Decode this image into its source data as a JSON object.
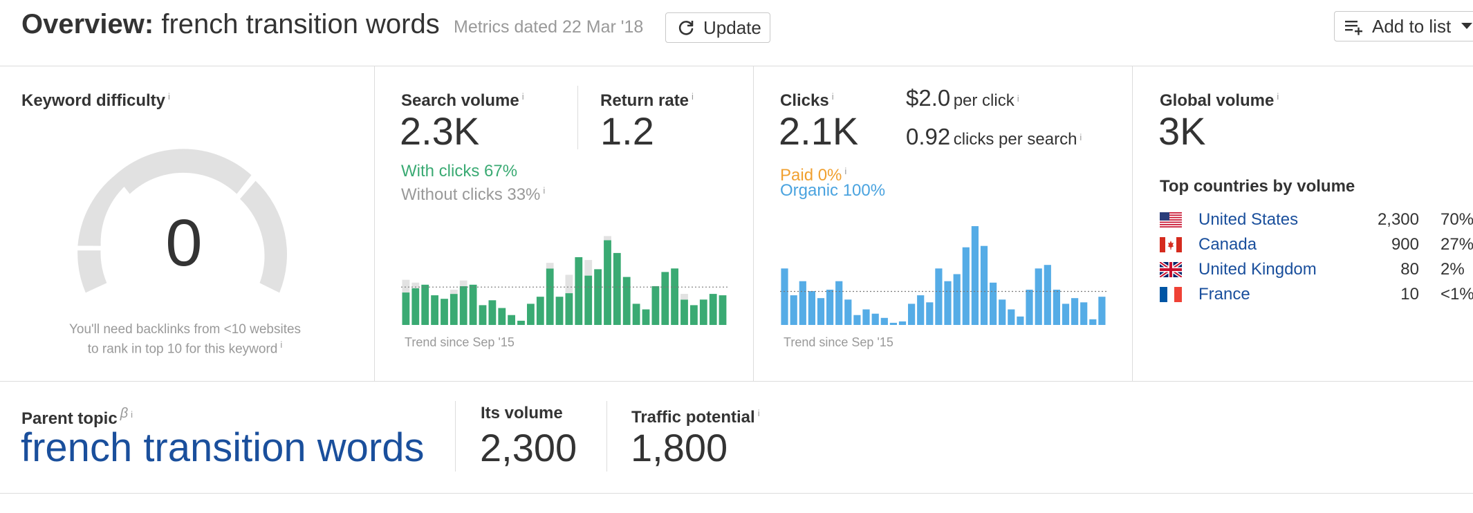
{
  "header": {
    "title_prefix": "Overview:",
    "title_keyword": "french transition words",
    "metrics_dated": "Metrics dated 22 Mar '18",
    "update_label": "Update",
    "add_to_list_label": "Add to list"
  },
  "kd": {
    "label": "Keyword difficulty",
    "value": "0",
    "note_line1": "You'll need backlinks from <10 websites",
    "note_line2": "to rank in top 10 for this keyword",
    "info": "i"
  },
  "search_volume": {
    "label": "Search volume",
    "value": "2.3K",
    "return_rate_label": "Return rate",
    "return_rate_value": "1.2",
    "with_clicks": "With clicks 67%",
    "without_clicks": "Without clicks 33%",
    "trend_label": "Trend since Sep '15",
    "info": "i"
  },
  "clicks": {
    "label": "Clicks",
    "value": "2.1K",
    "cpc_value": "$2.0",
    "cpc_label": "per click",
    "cps_value": "0.92",
    "cps_label": "clicks per search",
    "paid": "Paid 0%",
    "organic": "Organic 100%",
    "trend_label": "Trend since Sep '15",
    "info": "i"
  },
  "global": {
    "label": "Global volume",
    "value": "3K",
    "top_countries_label": "Top countries by volume",
    "countries": [
      {
        "name": "United States",
        "volume": "2,300",
        "pct": "70%",
        "flag": "us-flag-icon"
      },
      {
        "name": "Canada",
        "volume": "900",
        "pct": "27%",
        "flag": "ca-flag-icon"
      },
      {
        "name": "United Kingdom",
        "volume": "80",
        "pct": "2%",
        "flag": "uk-flag-icon"
      },
      {
        "name": "France",
        "volume": "10",
        "pct": "<1%",
        "flag": "fr-flag-icon"
      }
    ],
    "info": "i"
  },
  "parent_topic": {
    "label": "Parent topic",
    "beta": "β",
    "value": "french transition words",
    "its_volume_label": "Its volume",
    "its_volume_value": "2,300",
    "traffic_potential_label": "Traffic potential",
    "traffic_potential_value": "1,800",
    "info": "i"
  },
  "colors": {
    "green": "#3aaa73",
    "grey_bar": "#e2e2e2",
    "blue": "#55ace6",
    "orange": "#f0a030",
    "link": "#1a4f9c"
  },
  "chart_data": [
    {
      "type": "bar",
      "name": "Search volume trend",
      "series": [
        {
          "name": "With clicks",
          "values": [
            46,
            52,
            57,
            42,
            37,
            44,
            55,
            57,
            28,
            35,
            24,
            14,
            6,
            30,
            40,
            80,
            40,
            45,
            96,
            70,
            79,
            120,
            102,
            68,
            30,
            22,
            55,
            75,
            80,
            36,
            28,
            36,
            44,
            42
          ]
        },
        {
          "name": "Without clicks",
          "values": [
            18,
            8,
            0,
            0,
            0,
            6,
            8,
            0,
            0,
            0,
            0,
            0,
            0,
            0,
            0,
            8,
            0,
            26,
            0,
            22,
            0,
            6,
            0,
            0,
            0,
            0,
            0,
            0,
            0,
            8,
            0,
            0,
            0,
            0
          ]
        }
      ]
    },
    {
      "type": "bar",
      "name": "Clicks trend",
      "series": [
        {
          "name": "Organic",
          "values": [
            80,
            42,
            62,
            48,
            38,
            50,
            62,
            36,
            14,
            22,
            16,
            10,
            3,
            5,
            30,
            42,
            32,
            80,
            62,
            72,
            110,
            140,
            112,
            60,
            36,
            22,
            12,
            50,
            80,
            85,
            50,
            30,
            38,
            32,
            8,
            40
          ]
        }
      ]
    }
  ]
}
